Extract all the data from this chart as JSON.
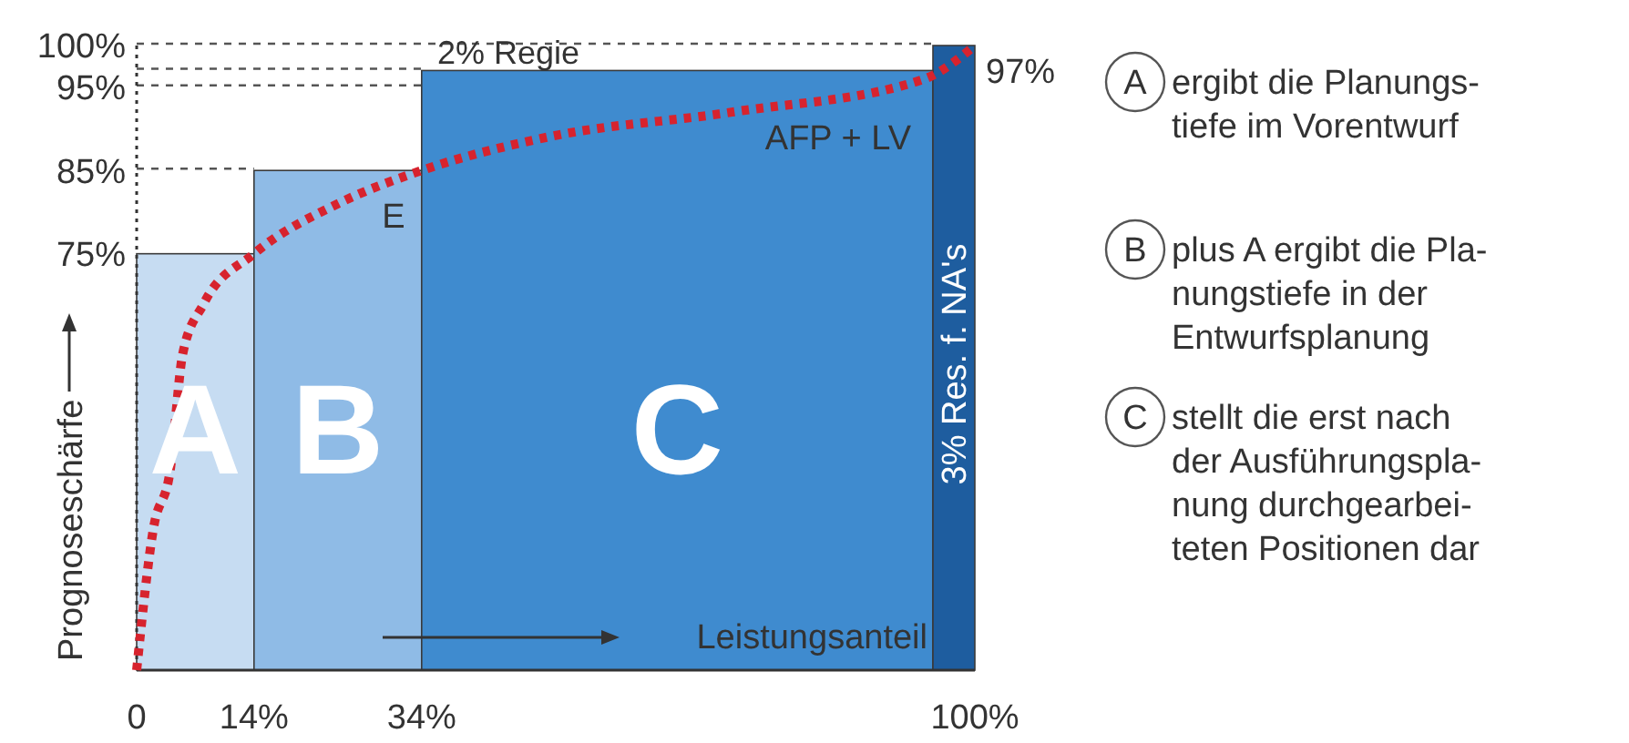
{
  "chart_data": {
    "type": "histogram",
    "xlabel": "Leistungsanteil",
    "ylabel": "Prognoseschärfe",
    "bins": [
      0,
      14,
      34,
      95,
      100
    ],
    "values": [
      75,
      85,
      97,
      100
    ],
    "colors": [
      "#c6dcf2",
      "#8fbbe6",
      "#3f8bcf",
      "#1e5d9f"
    ],
    "xlim": [
      0,
      100
    ],
    "xticks": [
      {
        "value": 0,
        "label": "0"
      },
      {
        "value": 14,
        "label": "14%"
      },
      {
        "value": 34,
        "label": "34%"
      },
      {
        "value": 100,
        "label": "100%"
      }
    ],
    "ylim": [
      25,
      100
    ],
    "yticks": [
      {
        "value": 75,
        "label": "75%"
      },
      {
        "value": 85,
        "label": "85%"
      },
      {
        "value": 95,
        "label": "95%"
      },
      {
        "value": 100,
        "label": "100%"
      }
    ],
    "series": [
      {
        "type": "line",
        "color": "#d7232e",
        "line_style": "dotted",
        "x": [
          0,
          2,
          4,
          5.5,
          8,
          14,
          24,
          34,
          49,
          71,
          94,
          100
        ],
        "values": [
          25,
          42,
          49,
          63,
          69,
          75,
          81,
          85,
          89,
          92,
          96,
          100
        ]
      }
    ],
    "ref_lines": [
      {
        "axis": "y",
        "value": 100,
        "line_style": "dotted",
        "color": "#555555"
      },
      {
        "axis": "y",
        "value": 97,
        "line_style": "dotted",
        "color": "#555555"
      },
      {
        "axis": "y",
        "value": 95,
        "line_style": "dotted",
        "color": "#555555"
      },
      {
        "axis": "y",
        "value": 85,
        "line_style": "dotted",
        "color": "#555555"
      }
    ],
    "annotations": [
      "A",
      "B",
      "C",
      "E",
      "AFP + LV",
      "2% Regie",
      "3% Res. f. NA's",
      {
        "text": "97%",
        "x": 100,
        "y": 97
      },
      "A ergibt die Planungs-\ntiefe im Vorentwurf",
      "B plus A ergibt die Pla-\nnungstiefe in der\nEntwurfsplanung",
      "C stellt die erst nach\nder Ausführungspla-\nnung durchgearbei-\nteten Positionen dar"
    ]
  }
}
